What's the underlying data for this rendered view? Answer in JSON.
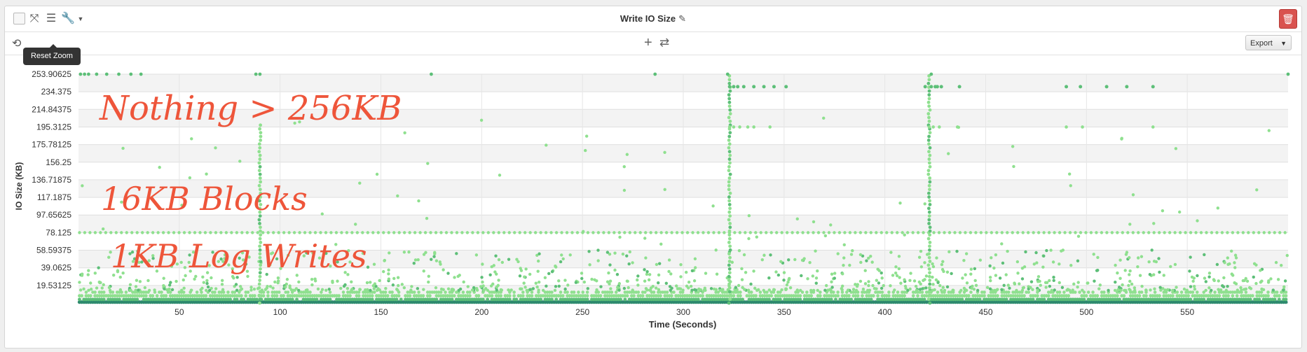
{
  "toolbar": {
    "title": "Write IO Size",
    "icons": [
      "checkbox",
      "expand-icon",
      "sliders-icon",
      "wrench-icon",
      "chevron-down-icon",
      "pencil-icon",
      "trash-icon"
    ]
  },
  "subbar": {
    "reset_tooltip": "Reset Zoom",
    "export_label": "Export"
  },
  "colors": {
    "points_light": "#8fe08f",
    "points_mid": "#5dbf78",
    "points_dark": "#2e8a6e",
    "delete_button": "#d9534f",
    "annotation": "#ee553a"
  },
  "annotations": [
    "Nothing > 256KB",
    "16KB Blocks",
    "1KB Log Writes"
  ],
  "chart_data": {
    "type": "scatter",
    "xlabel": "Time (Seconds)",
    "ylabel": "IO Size (KB)",
    "xlim": [
      0,
      600
    ],
    "ylim": [
      0,
      253.90625
    ],
    "x_ticks": [
      50,
      100,
      150,
      200,
      250,
      300,
      350,
      400,
      450,
      500,
      550
    ],
    "y_ticks": [
      "19.53125",
      "39.0625",
      "58.59375",
      "78.125",
      "97.65625",
      "117.1875",
      "136.71875",
      "156.25",
      "175.78125",
      "195.3125",
      "214.84375",
      "234.375",
      "253.90625"
    ],
    "grid": true,
    "series": [
      {
        "bands_kb": [
          1,
          4,
          8,
          16,
          24,
          32,
          64,
          192,
          240,
          256
        ],
        "dense_columns_seconds": [
          90,
          323,
          422
        ],
        "tall_columns_seconds": [
          323,
          422
        ]
      }
    ]
  }
}
